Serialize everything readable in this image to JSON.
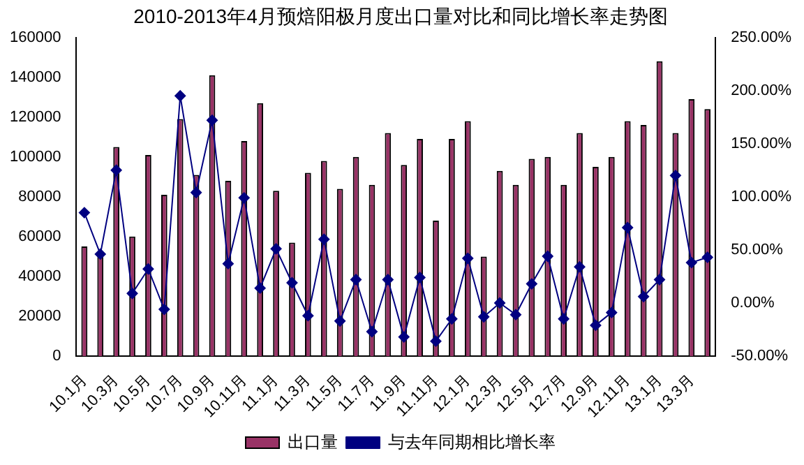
{
  "chart_data": {
    "type": "bar",
    "title": "2010-2013年4月预焙阳极月度出口量对比和同比增长率走势图",
    "categories": [
      "10.1月",
      null,
      "10.3月",
      null,
      "10.5月",
      null,
      "10.7月",
      null,
      "10.9月",
      null,
      "10.11月",
      null,
      "11.1月",
      null,
      "11.3月",
      null,
      "11.5月",
      null,
      "11.7月",
      null,
      "11.9月",
      null,
      "11.11月",
      null,
      "12.1月",
      null,
      "12.3月",
      null,
      "12.5月",
      null,
      "12.7月",
      null,
      "12.9月",
      null,
      "12.11月",
      null,
      "13.1月",
      null,
      "13.3月",
      null
    ],
    "series": [
      {
        "name": "出口量",
        "color": "#993366",
        "values": [
          55000,
          51000,
          105000,
          60000,
          101000,
          81000,
          119000,
          91000,
          141000,
          88000,
          108000,
          127000,
          83000,
          57000,
          92000,
          98000,
          84000,
          100000,
          86000,
          112000,
          96000,
          109000,
          68000,
          109000,
          118000,
          50000,
          93000,
          86000,
          99000,
          100000,
          86000,
          112000,
          95000,
          100000,
          118000,
          116000,
          148000,
          112000,
          129000,
          124000
        ]
      },
      {
        "name": "与去年同期相比增长率",
        "type": "line",
        "axis": "y2",
        "color": "#000080",
        "values": [
          85,
          46,
          125,
          9,
          32,
          -6,
          195,
          104,
          172,
          37,
          99,
          14,
          51,
          19,
          -12,
          60,
          -17,
          22,
          -27,
          22,
          -32,
          24,
          -36,
          -15,
          42,
          -13,
          0,
          -11,
          18,
          44,
          -15,
          34,
          -21,
          -9,
          71,
          6,
          22,
          120,
          38,
          43
        ]
      }
    ],
    "ylim": [
      0,
      160000
    ],
    "yticks": [
      0,
      20000,
      40000,
      60000,
      80000,
      100000,
      120000,
      140000,
      160000
    ],
    "y2lim": [
      -50,
      250
    ],
    "y2ticks": [
      {
        "value": -50,
        "label": "-50.00%"
      },
      {
        "value": 0,
        "label": "0.00%"
      },
      {
        "value": 50,
        "label": "50.00%"
      },
      {
        "value": 100,
        "label": "100.00%"
      },
      {
        "value": 150,
        "label": "150.00%"
      },
      {
        "value": 200,
        "label": "200.00%"
      },
      {
        "value": 250,
        "label": "250.00%"
      }
    ],
    "marker": "diamond",
    "legend": "bottom",
    "grid": false
  }
}
